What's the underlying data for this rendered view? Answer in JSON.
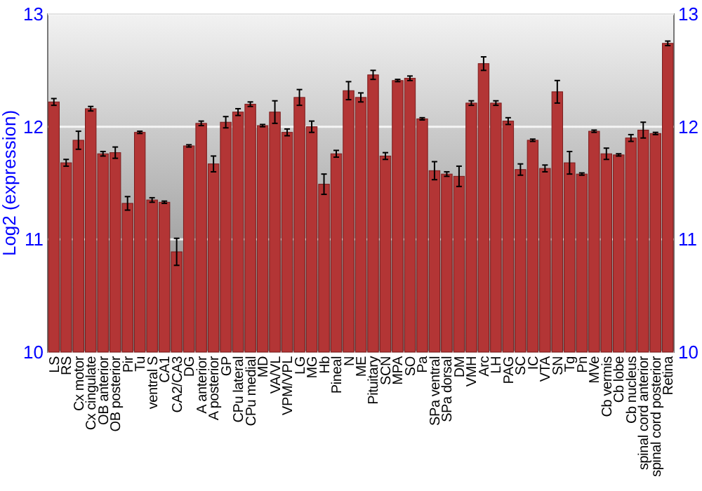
{
  "chart_data": {
    "type": "bar",
    "ylabel": "Log2 (expression)",
    "categories": [
      "LS",
      "RS",
      "Cx motor",
      "Cx cingulate",
      "OB anterior",
      "OB posterior",
      "Pir",
      "Tu",
      "ventral S",
      "CA1",
      "CA2/CA3",
      "DG",
      "A anterior",
      "A posterior",
      "GP",
      "CPu lateral",
      "CPu medial",
      "MD",
      "VA/VL",
      "VPM/VPL",
      "LG",
      "MG",
      "Hb",
      "Pineal",
      "N",
      "ME",
      "Pituitary",
      "SCN",
      "MPA",
      "SO",
      "Pa",
      "SPa ventral",
      "SPa dorsal",
      "DM",
      "VMH",
      "Arc",
      "LH",
      "PAG",
      "SC",
      "IC",
      "VTA",
      "SN",
      "Tg",
      "Pn",
      "MVe",
      "Cb vermis",
      "Cb lobe",
      "Cb nucleus",
      "spinal cord anterior",
      "spinal cord posterior",
      "Retina"
    ],
    "values": [
      12.22,
      11.68,
      11.88,
      12.16,
      11.76,
      11.77,
      11.32,
      11.95,
      11.35,
      11.33,
      10.89,
      11.83,
      12.03,
      11.67,
      12.04,
      12.13,
      12.2,
      12.01,
      12.13,
      11.95,
      12.26,
      12.0,
      11.49,
      11.76,
      12.32,
      12.26,
      12.46,
      11.74,
      12.41,
      12.43,
      12.07,
      11.61,
      11.58,
      11.56,
      12.21,
      12.56,
      12.21,
      12.05,
      11.62,
      11.88,
      11.63,
      12.31,
      11.68,
      11.58,
      11.96,
      11.76,
      11.75,
      11.9,
      11.97,
      11.94,
      12.74
    ],
    "errors": [
      0.03,
      0.03,
      0.08,
      0.02,
      0.02,
      0.05,
      0.06,
      0.01,
      0.02,
      0.01,
      0.12,
      0.01,
      0.02,
      0.07,
      0.05,
      0.03,
      0.02,
      0.01,
      0.1,
      0.03,
      0.07,
      0.05,
      0.09,
      0.03,
      0.08,
      0.04,
      0.04,
      0.03,
      0.01,
      0.02,
      0.01,
      0.08,
      0.02,
      0.09,
      0.02,
      0.06,
      0.02,
      0.03,
      0.05,
      0.01,
      0.03,
      0.1,
      0.1,
      0.01,
      0.01,
      0.05,
      0.01,
      0.03,
      0.07,
      0.01,
      0.02
    ],
    "color": "#b33535",
    "ylim": [
      10,
      13
    ],
    "yticks": [
      10,
      11,
      12,
      13
    ],
    "y2lim": [
      10,
      13
    ],
    "y2ticks": [
      10,
      11,
      12,
      13
    ],
    "grid": "y"
  }
}
